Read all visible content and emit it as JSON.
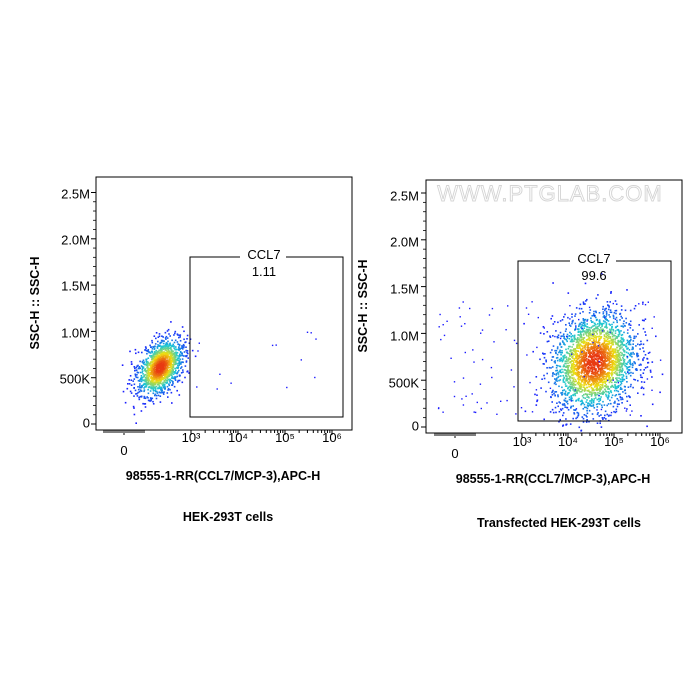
{
  "watermark": "WWW.PTGLAB.COM",
  "colors": {
    "frame": "#000000",
    "density_low": "#1a1aff",
    "density_mid": "#19c8d6",
    "density_high": "#f0e010",
    "density_peak": "#e83a12"
  },
  "chart_data": [
    {
      "type": "scatter",
      "title": "",
      "caption": "HEK-293T cells",
      "xlabel": "98555-1-RR(CCL7/MCP-3),APC-H",
      "ylabel": "SSC-H :: SSC-H",
      "x_scale": "biexponential",
      "x_ticks": [
        "0",
        "10³",
        "10⁴",
        "10⁵",
        "10⁶"
      ],
      "y_ticks": [
        "0",
        "500K",
        "1.0M",
        "1.5M",
        "2.0M",
        "2.5M"
      ],
      "ylim": [
        0,
        2700000
      ],
      "grid": false,
      "gate": {
        "label": "CCL7",
        "value": "1.11",
        "x_range": [
          1000,
          1000000
        ],
        "y_range": [
          50000,
          1800000
        ]
      },
      "populations": [
        {
          "x_center_log": 2.45,
          "x_spread_log": 0.18,
          "y_center": 620000,
          "y_spread": 150000,
          "density": "high"
        }
      ]
    },
    {
      "type": "scatter",
      "title": "",
      "caption": "Transfected HEK-293T cells",
      "xlabel": "98555-1-RR(CCL7/MCP-3),APC-H",
      "ylabel": "SSC-H :: SSC-H",
      "x_scale": "biexponential",
      "x_ticks": [
        "0",
        "10³",
        "10⁴",
        "10⁵",
        "10⁶"
      ],
      "y_ticks": [
        "0",
        "500K",
        "1.0M",
        "1.5M",
        "2.0M",
        "2.5M"
      ],
      "ylim": [
        0,
        2700000
      ],
      "grid": false,
      "gate": {
        "label": "CCL7",
        "value": "99.6",
        "x_range": [
          1000,
          1000000
        ],
        "y_range": [
          50000,
          1800000
        ]
      },
      "populations": [
        {
          "x_center_log": 4.55,
          "x_spread_log": 0.45,
          "y_center": 700000,
          "y_spread": 260000,
          "density": "high"
        }
      ]
    }
  ]
}
